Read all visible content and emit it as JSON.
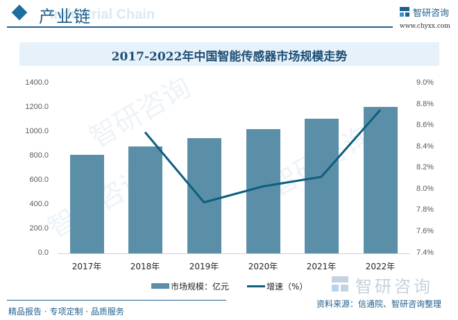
{
  "header": {
    "section_title": "产业链",
    "section_subtitle_watermark": "Industrial Chain",
    "brand_name": "智研咨询",
    "brand_url": "www.chyxx.com",
    "icon": "diamond-icon",
    "accent_color": "#1e5f8c"
  },
  "chart_title": "2017-2022年中国智能传感器市场规模走势",
  "legend": {
    "bar_label": "市场规模：亿元",
    "line_label": "增速（%）"
  },
  "footer": {
    "tagline": "精品报告 · 专项定制 · 品质服务",
    "source": "资料来源：信通院、智研咨询整理",
    "brand_watermark": "智研咨询"
  },
  "axes": {
    "left_ticks": [
      "1400.0",
      "1200.0",
      "1000.0",
      "800.0",
      "600.0",
      "400.0",
      "200.0",
      "0.0"
    ],
    "right_ticks": [
      "9.0%",
      "8.8%",
      "8.6%",
      "8.4%",
      "8.2%",
      "8.0%",
      "7.8%",
      "7.6%",
      "7.4%"
    ],
    "x_ticks": [
      "2017年",
      "2018年",
      "2019年",
      "2020年",
      "2021年",
      "2022年"
    ]
  },
  "chart_data": {
    "type": "bar",
    "title": "2017-2022年中国智能传感器市场规模走势",
    "categories": [
      "2017年",
      "2018年",
      "2019年",
      "2020年",
      "2021年",
      "2022年"
    ],
    "series": [
      {
        "name": "市场规模：亿元",
        "type": "bar",
        "axis": "left",
        "color": "#5b8fa8",
        "values": [
          811,
          880,
          949,
          1023,
          1109,
          1206
        ]
      },
      {
        "name": "增速（%）",
        "type": "line",
        "axis": "right",
        "color": "#0e5e80",
        "values": [
          null,
          8.54,
          7.88,
          8.03,
          8.12,
          8.75
        ]
      }
    ],
    "xlabel": "",
    "ylabel": "",
    "ylim": [
      0,
      1400
    ],
    "y2lim": [
      7.4,
      9.0
    ],
    "grid": false,
    "legend_position": "bottom"
  }
}
